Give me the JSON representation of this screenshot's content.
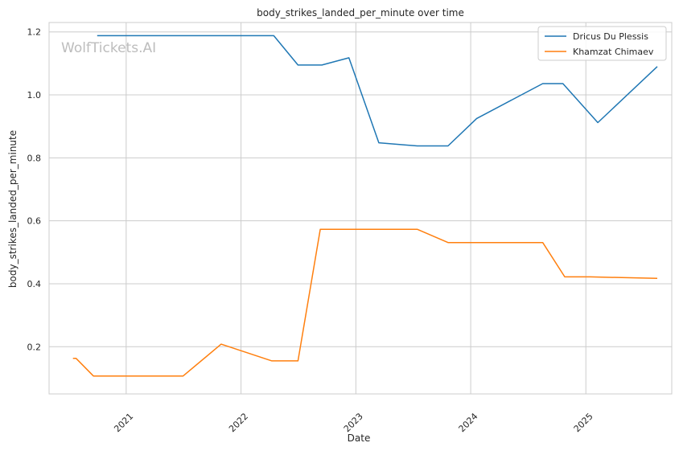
{
  "watermark": "WolfTickets.AI",
  "chart_data": {
    "type": "line",
    "title": "body_strikes_landed_per_minute over time",
    "xlabel": "Date",
    "ylabel": "body_strikes_landed_per_minute",
    "xlim": [
      "2020-05-01",
      "2025-10-01"
    ],
    "ylim": [
      0.05,
      1.23
    ],
    "x_ticks": [
      "2021-01-01",
      "2022-01-01",
      "2023-01-01",
      "2024-01-01",
      "2025-01-01"
    ],
    "x_tick_labels": [
      "2021",
      "2022",
      "2023",
      "2024",
      "2025"
    ],
    "y_ticks": [
      0.2,
      0.4,
      0.6,
      0.8,
      1.0,
      1.2
    ],
    "y_tick_labels": [
      "0.2",
      "0.4",
      "0.6",
      "0.8",
      "1.0",
      "1.2"
    ],
    "grid": true,
    "legend_position": "top-right",
    "series": [
      {
        "name": "Dricus Du Plessis",
        "color": "#1f77b4",
        "points": [
          [
            "2020-10-01",
            1.188
          ],
          [
            "2022-04-15",
            1.188
          ],
          [
            "2022-07-01",
            1.095
          ],
          [
            "2022-09-15",
            1.095
          ],
          [
            "2022-12-10",
            1.118
          ],
          [
            "2023-03-15",
            0.848
          ],
          [
            "2023-07-15",
            0.838
          ],
          [
            "2023-10-21",
            0.838
          ],
          [
            "2024-01-20",
            0.925
          ],
          [
            "2024-08-17",
            1.036
          ],
          [
            "2024-10-20",
            1.036
          ],
          [
            "2025-02-08",
            0.912
          ],
          [
            "2025-08-16",
            1.09
          ]
        ]
      },
      {
        "name": "Khamzat Chimaev",
        "color": "#ff7f0e",
        "points": [
          [
            "2020-07-16",
            0.163
          ],
          [
            "2020-07-26",
            0.163
          ],
          [
            "2020-09-19",
            0.107
          ],
          [
            "2021-07-01",
            0.107
          ],
          [
            "2021-10-30",
            0.208
          ],
          [
            "2022-04-09",
            0.155
          ],
          [
            "2022-07-01",
            0.155
          ],
          [
            "2022-09-10",
            0.573
          ],
          [
            "2023-07-15",
            0.573
          ],
          [
            "2023-10-21",
            0.531
          ],
          [
            "2024-08-17",
            0.531
          ],
          [
            "2024-10-26",
            0.422
          ],
          [
            "2025-01-15",
            0.422
          ],
          [
            "2025-08-16",
            0.417
          ]
        ]
      }
    ]
  }
}
